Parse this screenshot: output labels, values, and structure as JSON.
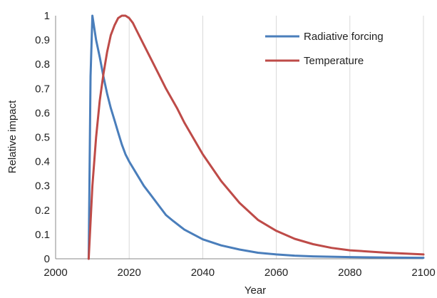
{
  "chart_data": {
    "type": "line",
    "title": "",
    "xlabel": "Year",
    "ylabel": "Relative impact",
    "xlim": [
      2000,
      2100
    ],
    "ylim": [
      0,
      1
    ],
    "x_ticks": [
      2000,
      2020,
      2040,
      2060,
      2080,
      2100
    ],
    "y_ticks": [
      0,
      0.1,
      0.2,
      0.3,
      0.4,
      0.5,
      0.6,
      0.7,
      0.8,
      0.9,
      1
    ],
    "grid": "vertical",
    "legend_position": "top-right",
    "series": [
      {
        "name": "Radiative forcing",
        "color": "#4a7ebb",
        "x": [
          2009,
          2009.5,
          2010,
          2011,
          2012,
          2013,
          2014,
          2015,
          2016,
          2017,
          2018,
          2019,
          2020,
          2022,
          2024,
          2026,
          2028,
          2030,
          2032,
          2035,
          2040,
          2045,
          2050,
          2055,
          2060,
          2065,
          2070,
          2080,
          2090,
          2100
        ],
        "values": [
          0,
          0.75,
          1.0,
          0.9,
          0.83,
          0.75,
          0.68,
          0.62,
          0.57,
          0.52,
          0.47,
          0.43,
          0.4,
          0.35,
          0.3,
          0.26,
          0.22,
          0.18,
          0.155,
          0.12,
          0.08,
          0.055,
          0.038,
          0.025,
          0.018,
          0.013,
          0.01,
          0.007,
          0.005,
          0.004
        ]
      },
      {
        "name": "Temperature",
        "color": "#be4b48",
        "x": [
          2009,
          2010,
          2011,
          2012,
          2013,
          2014,
          2015,
          2016,
          2017,
          2018,
          2019,
          2020,
          2021,
          2022,
          2024,
          2026,
          2028,
          2030,
          2033,
          2035,
          2040,
          2045,
          2050,
          2055,
          2060,
          2065,
          2070,
          2075,
          2080,
          2090,
          2100
        ],
        "values": [
          0,
          0.3,
          0.5,
          0.65,
          0.76,
          0.85,
          0.92,
          0.96,
          0.99,
          1.0,
          1.0,
          0.99,
          0.97,
          0.94,
          0.88,
          0.82,
          0.76,
          0.7,
          0.62,
          0.56,
          0.43,
          0.32,
          0.23,
          0.16,
          0.115,
          0.082,
          0.06,
          0.045,
          0.035,
          0.025,
          0.018
        ]
      }
    ]
  }
}
